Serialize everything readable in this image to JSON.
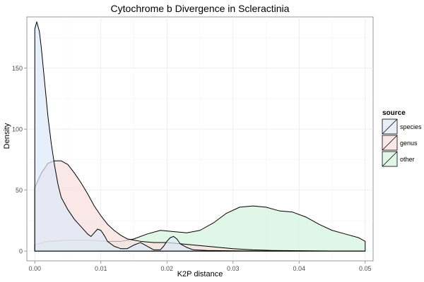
{
  "chart_data": {
    "type": "area",
    "chart_kind": "density",
    "title": "Cytochrome b Divergence in Scleractinia",
    "xlabel": "K2P distance",
    "ylabel": "Density",
    "xlim": [
      -0.0012,
      0.0512
    ],
    "ylim": [
      -8,
      192
    ],
    "xticks": [
      0.0,
      0.01,
      0.02,
      0.03,
      0.04,
      0.05
    ],
    "xtick_labels": [
      "0.00",
      "0.01",
      "0.02",
      "0.03",
      "0.04",
      "0.05"
    ],
    "yticks": [
      0,
      50,
      100,
      150
    ],
    "ytick_labels": [
      "0",
      "50",
      "100",
      "150"
    ],
    "grid": true,
    "legend": {
      "title": "source",
      "position": "right",
      "entries": [
        "species",
        "genus",
        "other"
      ]
    },
    "series": [
      {
        "name": "other",
        "color": "#d3f4dd",
        "points": [
          [
            0.0,
            5
          ],
          [
            0.002,
            8
          ],
          [
            0.005,
            9
          ],
          [
            0.008,
            9
          ],
          [
            0.011,
            8
          ],
          [
            0.013,
            8
          ],
          [
            0.015,
            10
          ],
          [
            0.017,
            14
          ],
          [
            0.019,
            17
          ],
          [
            0.021,
            16
          ],
          [
            0.023,
            15
          ],
          [
            0.025,
            17
          ],
          [
            0.027,
            23
          ],
          [
            0.029,
            31
          ],
          [
            0.031,
            36
          ],
          [
            0.033,
            37
          ],
          [
            0.035,
            36
          ],
          [
            0.037,
            33
          ],
          [
            0.039,
            32
          ],
          [
            0.041,
            28
          ],
          [
            0.043,
            22
          ],
          [
            0.045,
            17
          ],
          [
            0.047,
            14
          ],
          [
            0.049,
            11
          ],
          [
            0.05,
            8
          ]
        ]
      },
      {
        "name": "genus",
        "color": "#f8dedd",
        "points": [
          [
            0.0,
            52
          ],
          [
            0.001,
            64
          ],
          [
            0.002,
            72
          ],
          [
            0.003,
            74
          ],
          [
            0.004,
            74
          ],
          [
            0.005,
            71
          ],
          [
            0.006,
            64
          ],
          [
            0.007,
            56
          ],
          [
            0.008,
            47
          ],
          [
            0.009,
            37
          ],
          [
            0.01,
            29
          ],
          [
            0.011,
            22
          ],
          [
            0.012,
            17
          ],
          [
            0.013,
            13
          ],
          [
            0.014,
            10
          ],
          [
            0.016,
            8
          ],
          [
            0.018,
            7
          ],
          [
            0.02,
            7
          ],
          [
            0.022,
            6
          ],
          [
            0.024,
            5
          ],
          [
            0.026,
            4
          ],
          [
            0.028,
            3
          ],
          [
            0.03,
            2
          ],
          [
            0.033,
            1
          ],
          [
            0.036,
            0.5
          ],
          [
            0.04,
            0.3
          ],
          [
            0.045,
            0.1
          ],
          [
            0.05,
            0
          ]
        ]
      },
      {
        "name": "species",
        "color": "#dde9f8",
        "points": [
          [
            0.0,
            182
          ],
          [
            0.0003,
            188
          ],
          [
            0.0007,
            180
          ],
          [
            0.001,
            166
          ],
          [
            0.0015,
            138
          ],
          [
            0.002,
            110
          ],
          [
            0.0025,
            88
          ],
          [
            0.003,
            70
          ],
          [
            0.0035,
            55
          ],
          [
            0.004,
            44
          ],
          [
            0.005,
            34
          ],
          [
            0.006,
            26
          ],
          [
            0.007,
            20
          ],
          [
            0.008,
            14
          ],
          [
            0.0085,
            12
          ],
          [
            0.009,
            15
          ],
          [
            0.0095,
            18
          ],
          [
            0.01,
            17
          ],
          [
            0.0105,
            13
          ],
          [
            0.011,
            8
          ],
          [
            0.012,
            4
          ],
          [
            0.013,
            2
          ],
          [
            0.014,
            2
          ],
          [
            0.015,
            5
          ],
          [
            0.016,
            7
          ],
          [
            0.017,
            4
          ],
          [
            0.018,
            1
          ],
          [
            0.019,
            1
          ],
          [
            0.0195,
            4
          ],
          [
            0.02,
            8
          ],
          [
            0.0205,
            11
          ],
          [
            0.021,
            12
          ],
          [
            0.0215,
            10
          ],
          [
            0.022,
            6
          ],
          [
            0.023,
            3
          ],
          [
            0.024,
            1
          ],
          [
            0.026,
            0.5
          ],
          [
            0.03,
            0.2
          ],
          [
            0.035,
            0.1
          ],
          [
            0.04,
            0.1
          ],
          [
            0.045,
            0
          ],
          [
            0.05,
            0
          ]
        ]
      }
    ]
  }
}
